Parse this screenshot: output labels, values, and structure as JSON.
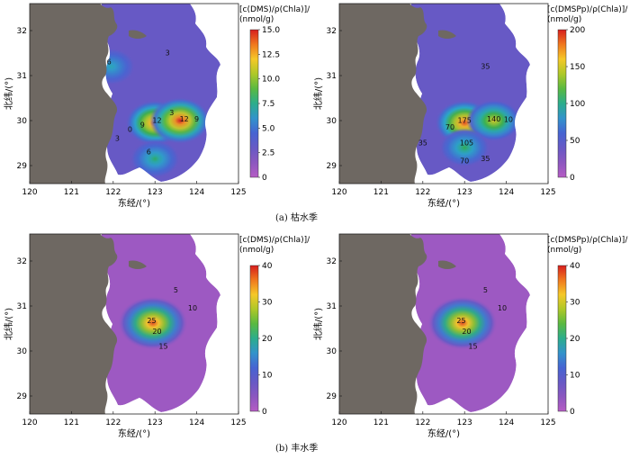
{
  "captions": {
    "dry": "(a)  枯水季",
    "wet": "(b)  丰水季"
  },
  "chart_data": [
    {
      "type": "heatmap",
      "panel": "dry-dms",
      "season": "枯水季",
      "xlabel": "东经/(°)",
      "ylabel": "北纬/(°)",
      "xlim": [
        120,
        125
      ],
      "ylim": [
        28.6,
        32.6
      ],
      "xticks": [
        "120",
        "121",
        "122",
        "123",
        "124",
        "125"
      ],
      "yticks": [
        "29",
        "30",
        "31",
        "32"
      ],
      "colorbar": {
        "title": [
          "[c(DMS)/ρ(Chla)]/",
          "(nmol/g)"
        ],
        "min": 0,
        "max": 15,
        "ticks": [
          "0",
          "2.5",
          "5.0",
          "7.5",
          "10.0",
          "12.5",
          "15.0"
        ]
      },
      "contour_labels": [
        {
          "text": "6",
          "lon": 121.9,
          "lat": 31.25
        },
        {
          "text": "3",
          "lon": 123.3,
          "lat": 31.45
        },
        {
          "text": "3",
          "lon": 123.4,
          "lat": 30.12
        },
        {
          "text": "12",
          "lon": 123.05,
          "lat": 29.95
        },
        {
          "text": "12",
          "lon": 123.7,
          "lat": 29.98
        },
        {
          "text": "9",
          "lon": 124.0,
          "lat": 29.98
        },
        {
          "text": "9",
          "lon": 122.7,
          "lat": 29.85
        },
        {
          "text": "0",
          "lon": 122.4,
          "lat": 29.75
        },
        {
          "text": "3",
          "lon": 122.1,
          "lat": 29.55
        },
        {
          "text": "6",
          "lon": 122.85,
          "lat": 29.25
        }
      ],
      "hotspots": [
        {
          "lon": 123.0,
          "lat": 29.95,
          "value": 14
        },
        {
          "lon": 123.6,
          "lat": 30.0,
          "value": 15
        },
        {
          "lon": 121.95,
          "lat": 31.2,
          "value": 7
        },
        {
          "lon": 123.0,
          "lat": 29.15,
          "value": 8
        }
      ]
    },
    {
      "type": "heatmap",
      "panel": "dry-dmspp",
      "season": "枯水季",
      "xlabel": "东经/(°)",
      "ylabel": "北纬/(°)",
      "xlim": [
        120,
        125
      ],
      "ylim": [
        28.6,
        32.6
      ],
      "xticks": [
        "120",
        "121",
        "122",
        "123",
        "124",
        "125"
      ],
      "yticks": [
        "29",
        "30",
        "31",
        "32"
      ],
      "colorbar": {
        "title": [
          "[c(DMSPp)/ρ(Chla)]/",
          "(nmol/g)"
        ],
        "min": 0,
        "max": 200,
        "ticks": [
          "0",
          "50",
          "100",
          "150",
          "200"
        ]
      },
      "contour_labels": [
        {
          "text": "35",
          "lon": 123.5,
          "lat": 31.15
        },
        {
          "text": "175",
          "lon": 123.0,
          "lat": 29.95
        },
        {
          "text": "140",
          "lon": 123.7,
          "lat": 29.98
        },
        {
          "text": "10",
          "lon": 124.05,
          "lat": 29.97
        },
        {
          "text": "70",
          "lon": 122.65,
          "lat": 29.8
        },
        {
          "text": "105",
          "lon": 123.05,
          "lat": 29.45
        },
        {
          "text": "35",
          "lon": 122.0,
          "lat": 29.45
        },
        {
          "text": "35",
          "lon": 123.5,
          "lat": 29.1
        },
        {
          "text": "70",
          "lon": 123.0,
          "lat": 29.05
        }
      ],
      "hotspots": [
        {
          "lon": 123.0,
          "lat": 29.95,
          "value": 190
        },
        {
          "lon": 123.7,
          "lat": 30.0,
          "value": 150
        },
        {
          "lon": 123.0,
          "lat": 29.4,
          "value": 110
        }
      ]
    },
    {
      "type": "heatmap",
      "panel": "wet-dms",
      "season": "丰水季",
      "xlabel": "东经/(°)",
      "ylabel": "北纬/(°)",
      "xlim": [
        120,
        125
      ],
      "ylim": [
        28.6,
        32.6
      ],
      "xticks": [
        "120",
        "121",
        "122",
        "123",
        "124",
        "125"
      ],
      "yticks": [
        "29",
        "30",
        "31",
        "32"
      ],
      "colorbar": {
        "title": [
          "[c(DMS)/ρ(Chla)]/",
          "(nmol/g)"
        ],
        "min": 0,
        "max": 40,
        "ticks": [
          "0",
          "10",
          "20",
          "30",
          "40"
        ]
      },
      "contour_labels": [
        {
          "text": "5",
          "lon": 123.5,
          "lat": 31.3
        },
        {
          "text": "10",
          "lon": 123.9,
          "lat": 30.9
        },
        {
          "text": "25",
          "lon": 122.92,
          "lat": 30.62
        },
        {
          "text": "20",
          "lon": 123.05,
          "lat": 30.38
        },
        {
          "text": "15",
          "lon": 123.2,
          "lat": 30.05
        }
      ],
      "hotspots": [
        {
          "lon": 122.95,
          "lat": 30.62,
          "value": 38
        }
      ]
    },
    {
      "type": "heatmap",
      "panel": "wet-dmspp",
      "season": "丰水季",
      "xlabel": "东经/(°)",
      "ylabel": "北纬/(°)",
      "xlim": [
        120,
        125
      ],
      "ylim": [
        28.6,
        32.6
      ],
      "xticks": [
        "120",
        "121",
        "122",
        "123",
        "124",
        "125"
      ],
      "yticks": [
        "29",
        "30",
        "31",
        "32"
      ],
      "colorbar": {
        "title": [
          "[c(DMSPp)/ρ(Chla)]/",
          "(nmol/g)"
        ],
        "min": 0,
        "max": 40,
        "ticks": [
          "0",
          "10",
          "20",
          "30",
          "40"
        ]
      },
      "contour_labels": [
        {
          "text": "5",
          "lon": 123.5,
          "lat": 31.3
        },
        {
          "text": "10",
          "lon": 123.9,
          "lat": 30.9
        },
        {
          "text": "25",
          "lon": 122.92,
          "lat": 30.62
        },
        {
          "text": "20",
          "lon": 123.05,
          "lat": 30.38
        },
        {
          "text": "15",
          "lon": 123.2,
          "lat": 30.05
        }
      ],
      "hotspots": [
        {
          "lon": 122.95,
          "lat": 30.62,
          "value": 38
        }
      ]
    }
  ]
}
